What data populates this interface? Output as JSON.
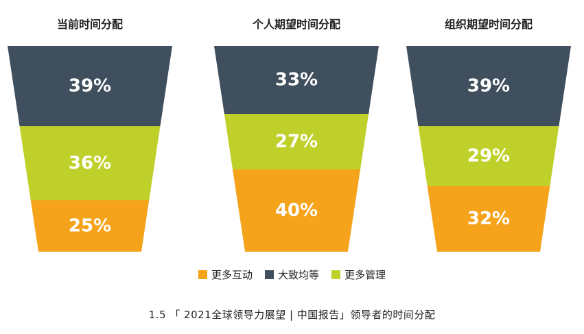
{
  "chart_data": {
    "type": "funnel",
    "categories": [
      "更多互动",
      "大致均等",
      "更多管理"
    ],
    "colors": {
      "更多互动": "#f5a31b",
      "大致均等": "#404f5e",
      "更多管理": "#bfd02a"
    },
    "funnels": [
      {
        "title": "当前时间分配",
        "segments": [
          {
            "category": "大致均等",
            "value": 39,
            "label": "39%"
          },
          {
            "category": "更多管理",
            "value": 36,
            "label": "36%"
          },
          {
            "category": "更多互动",
            "value": 25,
            "label": "25%"
          }
        ]
      },
      {
        "title": "个人期望时间分配",
        "segments": [
          {
            "category": "大致均等",
            "value": 33,
            "label": "33%"
          },
          {
            "category": "更多管理",
            "value": 27,
            "label": "27%"
          },
          {
            "category": "更多互动",
            "value": 40,
            "label": "40%"
          }
        ]
      },
      {
        "title": "组织期望时间分配",
        "segments": [
          {
            "category": "大致均等",
            "value": 39,
            "label": "39%"
          },
          {
            "category": "更多管理",
            "value": 29,
            "label": "29%"
          },
          {
            "category": "更多互动",
            "value": 32,
            "label": "32%"
          }
        ]
      }
    ],
    "legend": {
      "placement": "bottom-center",
      "items": [
        {
          "label": "更多互动",
          "color": "#f5a31b"
        },
        {
          "label": "大致均等",
          "color": "#404f5e"
        },
        {
          "label": "更多管理",
          "color": "#bfd02a"
        }
      ]
    },
    "caption": "1.5 「 2021全球领导力展望 | 中国报告」领导者的时间分配"
  }
}
